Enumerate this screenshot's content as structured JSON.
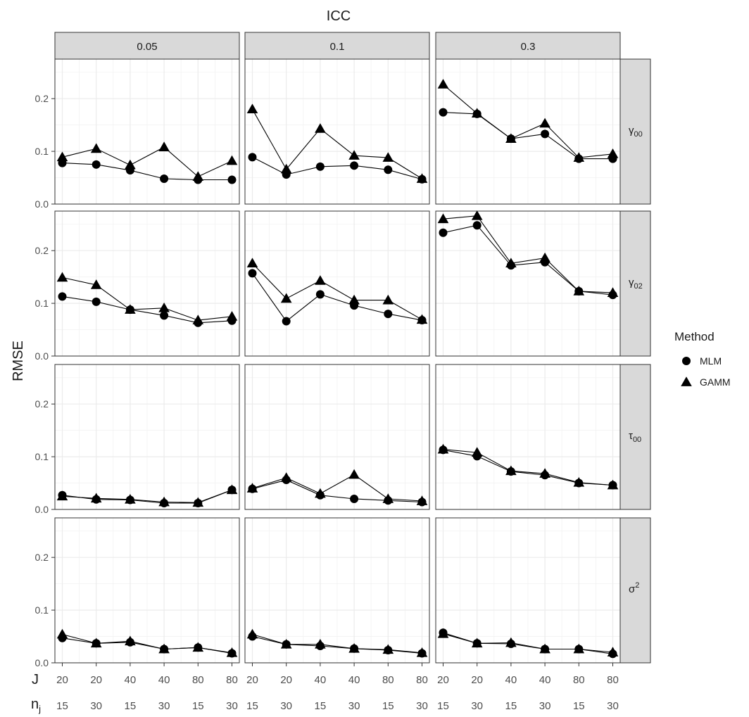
{
  "chart_data": {
    "type": "line",
    "title": "ICC",
    "ylabel": "RMSE",
    "xlabel": "",
    "ylim": [
      0,
      0.275
    ],
    "y_ticks": [
      "0.0",
      "0.1",
      "0.2"
    ],
    "x_row_labels": {
      "J_label": "J",
      "nj_label_main": "n",
      "nj_label_sub": "j",
      "J": [
        "20",
        "20",
        "40",
        "40",
        "80",
        "80"
      ],
      "nj": [
        "15",
        "30",
        "15",
        "30",
        "15",
        "30"
      ]
    },
    "columns": [
      "0.05",
      "0.1",
      "0.3"
    ],
    "rows": [
      {
        "main": "γ",
        "sub": "00"
      },
      {
        "main": "γ",
        "sub": "02"
      },
      {
        "main": "τ",
        "sub": "00"
      },
      {
        "main": "σ",
        "sup": "2"
      }
    ],
    "legend": {
      "title": "Method",
      "position": "right",
      "entries": [
        {
          "name": "MLM",
          "shape": "circle"
        },
        {
          "name": "GAMM",
          "shape": "triangle"
        }
      ]
    },
    "grid": true,
    "panels": [
      [
        {
          "MLM": [
            0.078,
            0.075,
            0.064,
            0.048,
            0.046,
            0.046
          ],
          "GAMM": [
            0.089,
            0.105,
            0.074,
            0.108,
            0.052,
            0.082
          ]
        },
        {
          "MLM": [
            0.089,
            0.056,
            0.071,
            0.073,
            0.065,
            0.047
          ],
          "GAMM": [
            0.18,
            0.066,
            0.143,
            0.092,
            0.088,
            0.048
          ]
        },
        {
          "MLM": [
            0.174,
            0.171,
            0.124,
            0.133,
            0.086,
            0.086
          ],
          "GAMM": [
            0.227,
            0.172,
            0.124,
            0.153,
            0.088,
            0.095
          ]
        }
      ],
      [
        {
          "MLM": [
            0.113,
            0.103,
            0.088,
            0.077,
            0.063,
            0.067
          ],
          "GAMM": [
            0.149,
            0.135,
            0.088,
            0.091,
            0.068,
            0.075
          ]
        },
        {
          "MLM": [
            0.157,
            0.066,
            0.117,
            0.096,
            0.08,
            0.068
          ],
          "GAMM": [
            0.176,
            0.109,
            0.143,
            0.106,
            0.106,
            0.069
          ]
        },
        {
          "MLM": [
            0.234,
            0.248,
            0.172,
            0.178,
            0.123,
            0.116
          ],
          "GAMM": [
            0.26,
            0.266,
            0.176,
            0.186,
            0.123,
            0.12
          ]
        }
      ],
      [
        {
          "MLM": [
            0.027,
            0.019,
            0.018,
            0.012,
            0.012,
            0.037
          ],
          "GAMM": [
            0.025,
            0.021,
            0.019,
            0.014,
            0.013,
            0.037
          ]
        },
        {
          "MLM": [
            0.039,
            0.056,
            0.027,
            0.02,
            0.017,
            0.014
          ],
          "GAMM": [
            0.04,
            0.06,
            0.03,
            0.066,
            0.02,
            0.016
          ]
        },
        {
          "MLM": [
            0.113,
            0.101,
            0.072,
            0.065,
            0.05,
            0.046
          ],
          "GAMM": [
            0.114,
            0.108,
            0.073,
            0.068,
            0.051,
            0.046
          ]
        }
      ],
      [
        {
          "MLM": [
            0.047,
            0.037,
            0.039,
            0.026,
            0.029,
            0.018
          ],
          "GAMM": [
            0.054,
            0.037,
            0.041,
            0.026,
            0.029,
            0.019
          ]
        },
        {
          "MLM": [
            0.05,
            0.035,
            0.032,
            0.027,
            0.024,
            0.018
          ],
          "GAMM": [
            0.054,
            0.035,
            0.035,
            0.027,
            0.025,
            0.019
          ]
        },
        {
          "MLM": [
            0.057,
            0.037,
            0.036,
            0.026,
            0.026,
            0.017
          ],
          "GAMM": [
            0.055,
            0.037,
            0.038,
            0.026,
            0.026,
            0.02
          ]
        }
      ]
    ]
  }
}
